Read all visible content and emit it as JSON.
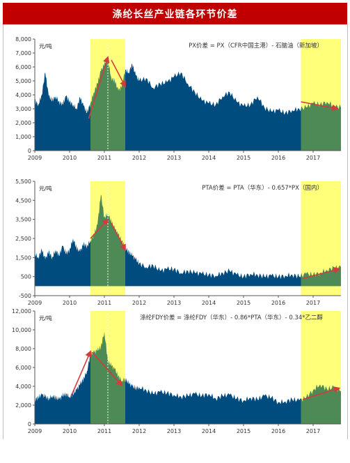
{
  "header": {
    "title": "涤纶长丝产业链各环节价差"
  },
  "colors": {
    "header_bg": "#c00000",
    "area": "#004c7f",
    "highlight": "#ffff7a",
    "overlap": "#4e8a55",
    "arrow": "#d23c3c"
  },
  "chart_data": [
    {
      "type": "area",
      "unit_label": "元/吨",
      "annotation": "PX价差 = PX（CFR中国主港）- 石脑油（新加坡）",
      "x_ticks": [
        "2009",
        "2010",
        "2011",
        "2012",
        "2013",
        "2014",
        "2015",
        "2016",
        "2017"
      ],
      "y_ticks": [
        "0",
        "1,000",
        "2,000",
        "3,000",
        "4,000",
        "5,000",
        "6,000",
        "7,000",
        "8,000"
      ],
      "ylim": [
        0,
        8000
      ],
      "xlim": [
        2009.0,
        2017.8
      ],
      "highlight_ranges": [
        [
          2010.6,
          2011.6
        ],
        [
          2016.65,
          2017.8
        ]
      ],
      "arrows": [
        {
          "from": [
            2010.55,
            2300
          ],
          "to": [
            2011.1,
            6700
          ]
        },
        {
          "from": [
            2011.2,
            6500
          ],
          "to": [
            2011.6,
            4600
          ]
        },
        {
          "from": [
            2016.65,
            3500
          ],
          "to": [
            2017.7,
            3000
          ]
        }
      ],
      "series": [
        {
          "x": [
            2009.0,
            2009.1,
            2009.2,
            2009.3,
            2009.4,
            2009.5,
            2009.6,
            2009.7,
            2009.8,
            2009.9,
            2010.0,
            2010.1,
            2010.2,
            2010.3,
            2010.4,
            2010.5,
            2010.6,
            2010.7,
            2010.8,
            2010.9,
            2011.0,
            2011.1,
            2011.2,
            2011.3,
            2011.4,
            2011.5,
            2011.6,
            2011.7,
            2011.8,
            2011.9,
            2012.0,
            2012.2,
            2012.4,
            2012.6,
            2012.8,
            2013.0,
            2013.2,
            2013.4,
            2013.6,
            2013.8,
            2014.0,
            2014.2,
            2014.4,
            2014.6,
            2014.8,
            2015.0,
            2015.2,
            2015.4,
            2015.6,
            2015.8,
            2016.0,
            2016.2,
            2016.4,
            2016.6,
            2016.8,
            2017.0,
            2017.2,
            2017.4,
            2017.6,
            2017.8
          ],
          "values": [
            3600,
            3300,
            4000,
            5600,
            3900,
            3600,
            3900,
            3500,
            3300,
            3900,
            3500,
            3300,
            3000,
            3800,
            3200,
            2700,
            3400,
            4200,
            4800,
            5700,
            6200,
            6500,
            5200,
            5000,
            4300,
            4600,
            5800,
            5600,
            6200,
            5400,
            5000,
            5200,
            4500,
            4800,
            4900,
            5300,
            5600,
            4800,
            4200,
            3600,
            3400,
            3300,
            3900,
            4200,
            3500,
            3200,
            3300,
            3900,
            3100,
            2800,
            2900,
            2700,
            2900,
            3000,
            3100,
            3400,
            3300,
            3500,
            3200,
            3100
          ]
        }
      ]
    },
    {
      "type": "area",
      "unit_label": "元/吨",
      "annotation": "PTA价差 = PTA（华东）- 0.657*PX（国内）",
      "x_ticks": [
        "2009",
        "2010",
        "2011",
        "2012",
        "2013",
        "2014",
        "2015",
        "2016",
        "2017"
      ],
      "y_ticks": [
        "-500",
        "500",
        "1,500",
        "2,500",
        "3,500",
        "4,500",
        "5,500"
      ],
      "ylim": [
        -500,
        5500
      ],
      "xlim": [
        2009.0,
        2017.8
      ],
      "highlight_ranges": [
        [
          2010.6,
          2011.6
        ],
        [
          2016.65,
          2017.8
        ]
      ],
      "arrows": [
        {
          "from": [
            2010.6,
            2500
          ],
          "to": [
            2011.1,
            3500
          ]
        },
        {
          "from": [
            2011.2,
            3300
          ],
          "to": [
            2011.6,
            1900
          ]
        },
        {
          "from": [
            2016.7,
            400
          ],
          "to": [
            2017.75,
            900
          ]
        }
      ],
      "series": [
        {
          "x": [
            2009.0,
            2009.1,
            2009.2,
            2009.3,
            2009.4,
            2009.5,
            2009.6,
            2009.7,
            2009.8,
            2009.9,
            2010.0,
            2010.1,
            2010.2,
            2010.3,
            2010.4,
            2010.5,
            2010.6,
            2010.7,
            2010.8,
            2010.9,
            2011.0,
            2011.1,
            2011.2,
            2011.3,
            2011.4,
            2011.5,
            2011.6,
            2011.7,
            2011.8,
            2011.9,
            2012.0,
            2012.2,
            2012.4,
            2012.6,
            2012.8,
            2013.0,
            2013.2,
            2013.4,
            2013.6,
            2013.8,
            2014.0,
            2014.2,
            2014.4,
            2014.6,
            2014.8,
            2015.0,
            2015.2,
            2015.4,
            2015.6,
            2015.8,
            2016.0,
            2016.2,
            2016.4,
            2016.6,
            2016.8,
            2017.0,
            2017.2,
            2017.4,
            2017.6,
            2017.8
          ],
          "values": [
            1700,
            1500,
            1900,
            1400,
            1800,
            1500,
            1900,
            1600,
            2100,
            1700,
            1900,
            2500,
            2000,
            1800,
            2200,
            2100,
            2400,
            2700,
            3200,
            4800,
            3600,
            3800,
            3400,
            3000,
            2700,
            2400,
            2000,
            1800,
            1600,
            1400,
            1200,
            1000,
            1100,
            800,
            900,
            900,
            700,
            800,
            700,
            650,
            600,
            550,
            700,
            800,
            600,
            500,
            650,
            600,
            500,
            550,
            500,
            550,
            600,
            500,
            650,
            600,
            700,
            850,
            950,
            1000
          ]
        }
      ]
    },
    {
      "type": "area",
      "unit_label": "元/吨",
      "annotation": "涤纶FDY价差 = 涤纶FDY（华东）- 0.86*PTA（华东）- 0.34*乙二醇",
      "x_ticks": [
        "2009",
        "2010",
        "2011",
        "2012",
        "2013",
        "2014",
        "2015",
        "2016",
        "2017"
      ],
      "y_ticks": [
        "0",
        "2,000",
        "4,000",
        "6,000",
        "8,000",
        "10,000",
        "12,000"
      ],
      "ylim": [
        0,
        12000
      ],
      "xlim": [
        2009.0,
        2017.8
      ],
      "highlight_ranges": [
        [
          2010.6,
          2011.6
        ],
        [
          2016.65,
          2017.8
        ]
      ],
      "arrows": [
        {
          "from": [
            2010.05,
            3000
          ],
          "to": [
            2010.6,
            7700
          ]
        },
        {
          "from": [
            2010.65,
            7600
          ],
          "to": [
            2011.5,
            4100
          ]
        },
        {
          "from": [
            2016.7,
            2600
          ],
          "to": [
            2017.75,
            3800
          ]
        }
      ],
      "series": [
        {
          "x": [
            2009.0,
            2009.1,
            2009.2,
            2009.3,
            2009.4,
            2009.5,
            2009.6,
            2009.7,
            2009.8,
            2009.9,
            2010.0,
            2010.1,
            2010.2,
            2010.3,
            2010.4,
            2010.5,
            2010.6,
            2010.7,
            2010.8,
            2010.9,
            2011.0,
            2011.1,
            2011.2,
            2011.3,
            2011.4,
            2011.5,
            2011.6,
            2011.7,
            2011.8,
            2011.9,
            2012.0,
            2012.2,
            2012.4,
            2012.6,
            2012.8,
            2013.0,
            2013.2,
            2013.4,
            2013.6,
            2013.8,
            2014.0,
            2014.2,
            2014.4,
            2014.6,
            2014.8,
            2015.0,
            2015.2,
            2015.4,
            2015.6,
            2015.8,
            2016.0,
            2016.2,
            2016.4,
            2016.6,
            2016.8,
            2017.0,
            2017.2,
            2017.4,
            2017.6,
            2017.8
          ],
          "values": [
            2600,
            2800,
            3100,
            2900,
            2700,
            3000,
            2800,
            2600,
            3000,
            3200,
            2900,
            3200,
            3600,
            4200,
            4800,
            5600,
            7400,
            7600,
            7800,
            8200,
            9800,
            6700,
            6200,
            5800,
            5100,
            4600,
            4800,
            4300,
            4000,
            3800,
            3900,
            3600,
            3200,
            3400,
            3300,
            3100,
            2900,
            3000,
            3200,
            3000,
            3200,
            2700,
            3000,
            3100,
            2700,
            2500,
            2800,
            2600,
            3000,
            2800,
            2300,
            2400,
            2600,
            2500,
            2800,
            3600,
            4200,
            3700,
            3900,
            3500
          ]
        }
      ]
    }
  ]
}
